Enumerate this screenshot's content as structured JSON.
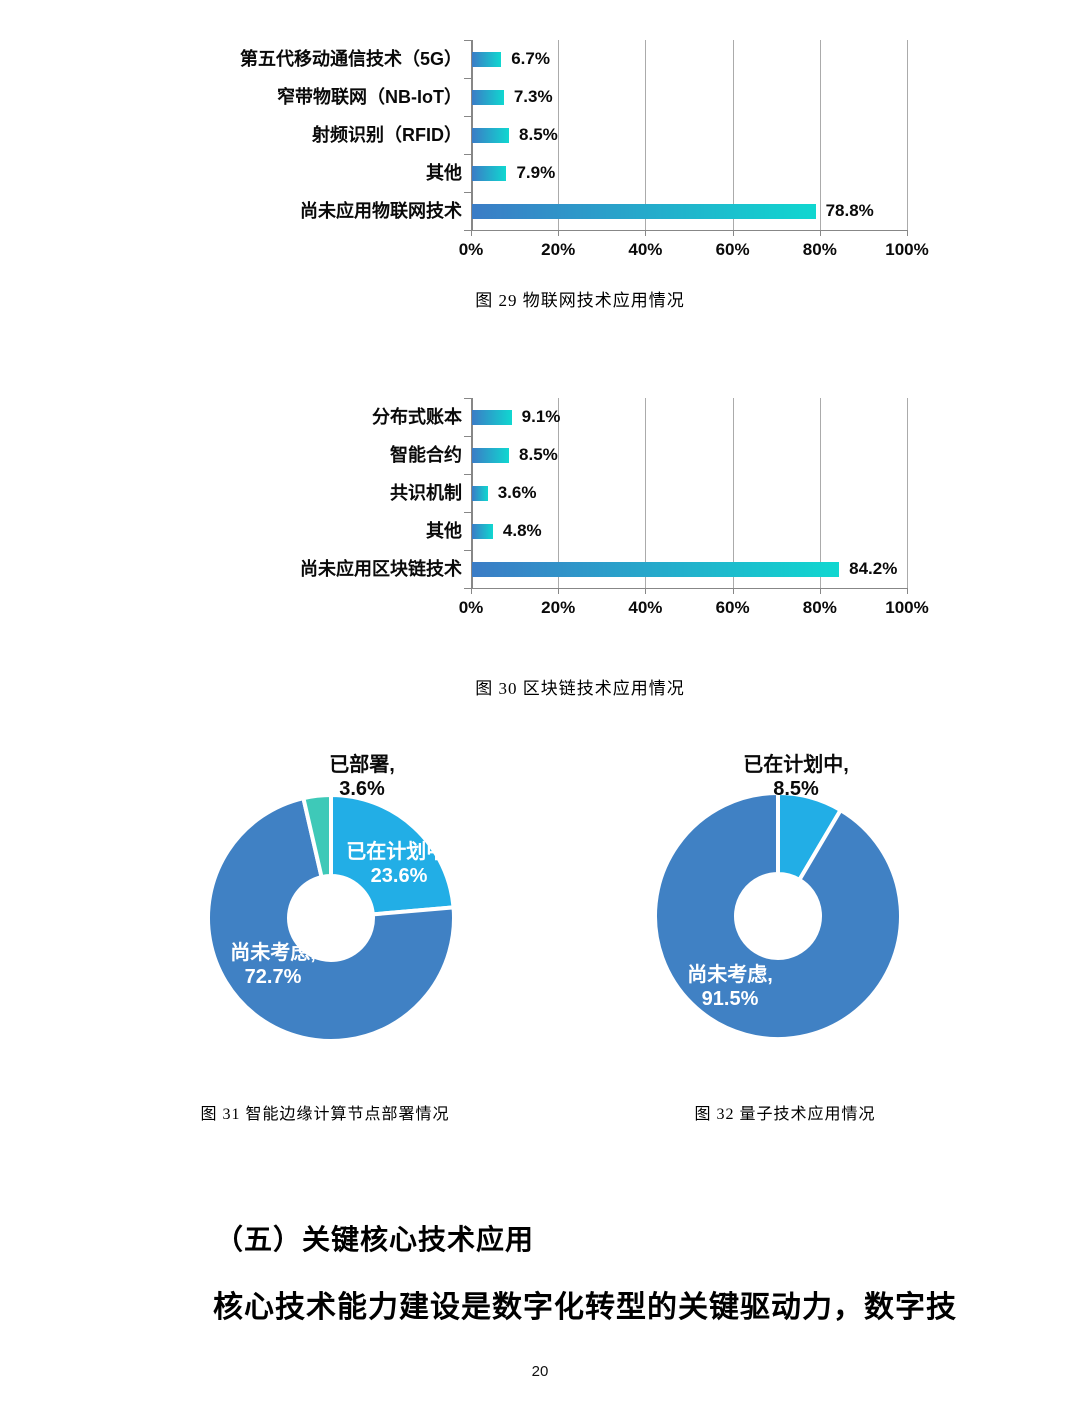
{
  "page": {
    "number": "20"
  },
  "colors": {
    "bar_gradient_start": "#3b7cc6",
    "bar_gradient_end": "#10d7d0",
    "gridline": "#ababab",
    "axis": "#878787",
    "pie_blue": "#4081c4",
    "pie_light_blue": "#22aee6",
    "pie_teal": "#3ec9b8",
    "inside_label": "#ffffff",
    "text": "#0a0a0a"
  },
  "chart_data": [
    {
      "id": "iot-bar",
      "type": "bar",
      "orientation": "horizontal",
      "title": "图 29 物联网技术应用情况",
      "categories": [
        "第五代移动通信技术（5G）",
        "窄带物联网（NB-IoT）",
        "射频识别（RFID）",
        "其他",
        "尚未应用物联网技术"
      ],
      "values": [
        6.7,
        7.3,
        8.5,
        7.9,
        78.8
      ],
      "value_labels": [
        "6.7%",
        "7.3%",
        "8.5%",
        "7.9%",
        "78.8%"
      ],
      "x_ticks": [
        "0%",
        "20%",
        "40%",
        "60%",
        "80%",
        "100%"
      ],
      "xlim": [
        0,
        100
      ],
      "grid": true,
      "legend": false
    },
    {
      "id": "blockchain-bar",
      "type": "bar",
      "orientation": "horizontal",
      "title": "图 30 区块链技术应用情况",
      "categories": [
        "分布式账本",
        "智能合约",
        "共识机制",
        "其他",
        "尚未应用区块链技术"
      ],
      "values": [
        9.1,
        8.5,
        3.6,
        4.8,
        84.2
      ],
      "value_labels": [
        "9.1%",
        "8.5%",
        "3.6%",
        "4.8%",
        "84.2%"
      ],
      "x_ticks": [
        "0%",
        "20%",
        "40%",
        "60%",
        "80%",
        "100%"
      ],
      "xlim": [
        0,
        100
      ],
      "grid": true,
      "legend": false
    },
    {
      "id": "edge-donut",
      "type": "pie",
      "donut": true,
      "title": "图 31 智能边缘计算节点部署情况",
      "start_angle_deg": 0,
      "slices": [
        {
          "label": "已在计划中",
          "value": 23.6,
          "color": "#22aee6",
          "label_line1": "已在计划中,",
          "label_line2": "23.6%",
          "label_placement": "inside"
        },
        {
          "label": "尚未考虑",
          "value": 72.7,
          "color": "#4081c4",
          "label_line1": "尚未考虑,",
          "label_line2": "72.7%",
          "label_placement": "inside"
        },
        {
          "label": "已部署",
          "value": 3.6,
          "color": "#3ec9b8",
          "label_line1": "已部署,",
          "label_line2": "3.6%",
          "label_placement": "outside"
        }
      ]
    },
    {
      "id": "quantum-donut",
      "type": "pie",
      "donut": true,
      "title": "图 32 量子技术应用情况",
      "start_angle_deg": 0,
      "slices": [
        {
          "label": "已在计划中",
          "value": 8.5,
          "color": "#22aee6",
          "label_line1": "已在计划中,",
          "label_line2": "8.5%",
          "label_placement": "outside"
        },
        {
          "label": "尚未考虑",
          "value": 91.5,
          "color": "#4081c4",
          "label_line1": "尚未考虑,",
          "label_line2": "91.5%",
          "label_placement": "inside"
        }
      ]
    }
  ],
  "section": {
    "heading": "（五）关键核心技术应用",
    "body_text": "核心技术能力建设是数字化转型的关键驱动力，数字技"
  }
}
